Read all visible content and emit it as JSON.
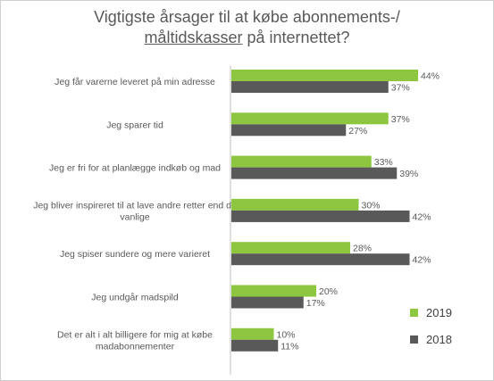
{
  "title": {
    "line1": "Vigtigste årsager til at købe abonnements-/",
    "line2_underlined": "måltidskasser",
    "line2_rest": " på internettet?"
  },
  "colors": {
    "series_2019": "#8dc63f",
    "series_2018": "#595959",
    "axis": "#bfbfbf",
    "text": "#595959"
  },
  "chart_data": {
    "type": "bar",
    "orientation": "horizontal",
    "title": "Vigtigste årsager til at købe abonnements-/ måltidskasser på internettet?",
    "categories": [
      "Jeg får varerne leveret på min adresse",
      "Jeg sparer tid",
      "Jeg er fri for at planlægge indkøb og mad",
      "Jeg bliver inspireret til at lave andre retter end de vanlige",
      "Jeg spiser sundere og mere varieret",
      "Jeg undgår madspild",
      "Det er alt i alt billigere for mig at købe madabonnementer"
    ],
    "category_lines": [
      [
        "Jeg får varerne leveret på min adresse"
      ],
      [
        "Jeg sparer tid"
      ],
      [
        "Jeg er fri for at planlægge indkøb og mad"
      ],
      [
        "Jeg bliver inspireret til at lave andre retter end de",
        "vanlige"
      ],
      [
        "Jeg spiser sundere og mere varieret"
      ],
      [
        "Jeg undgår madspild"
      ],
      [
        "Det er alt i alt billigere for mig at købe",
        "madabonnementer"
      ]
    ],
    "series": [
      {
        "name": "2019",
        "values": [
          44,
          37,
          33,
          30,
          28,
          20,
          10
        ],
        "labels": [
          "44%",
          "37%",
          "33%",
          "30%",
          "28%",
          "20%",
          "10%"
        ]
      },
      {
        "name": "2018",
        "values": [
          37,
          27,
          39,
          42,
          42,
          17,
          11
        ],
        "labels": [
          "37%",
          "27%",
          "39%",
          "42%",
          "42%",
          "17%",
          "11%"
        ]
      }
    ],
    "xlim": [
      0,
      44
    ],
    "legend_position": "bottom-right",
    "grid": false
  }
}
